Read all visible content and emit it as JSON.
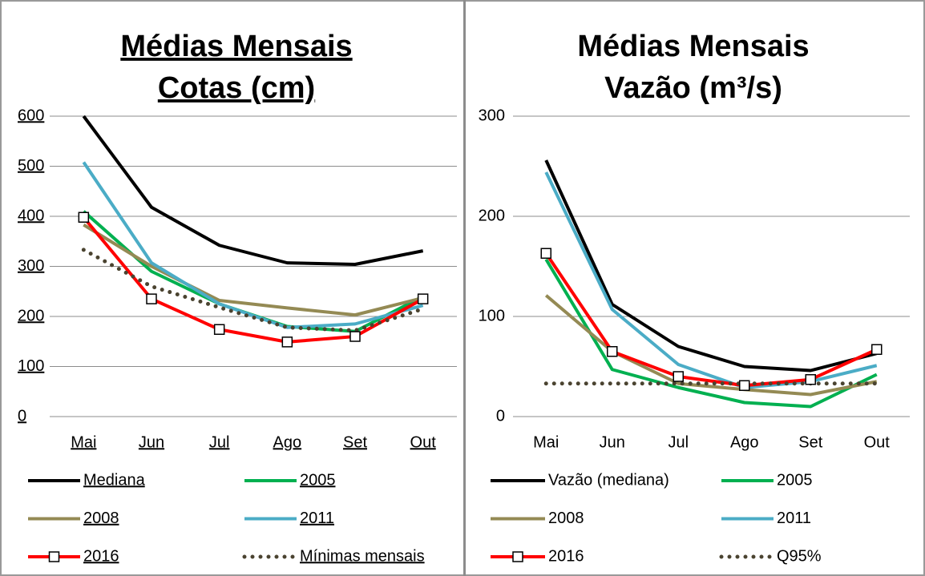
{
  "chart_data": [
    {
      "type": "line",
      "title": "Médias Mensais",
      "subtitle": "Cotas (cm)",
      "underline": true,
      "categories": [
        "Mai",
        "Jun",
        "Jul",
        "Ago",
        "Set",
        "Out"
      ],
      "ylim": [
        0,
        600
      ],
      "yticks": [
        0,
        100,
        200,
        300,
        400,
        500,
        600
      ],
      "grid": true,
      "series": [
        {
          "name": "Mediana",
          "color": "#000000",
          "values": [
            600,
            418,
            342,
            307,
            304,
            331
          ]
        },
        {
          "name": "2005",
          "color": "#00b050",
          "values": [
            410,
            290,
            225,
            180,
            170,
            240
          ]
        },
        {
          "name": "2008",
          "color": "#948a54",
          "values": [
            383,
            300,
            232,
            217,
            203,
            237
          ]
        },
        {
          "name": "2011",
          "color": "#4bacc6",
          "values": [
            508,
            307,
            225,
            178,
            185,
            222
          ]
        },
        {
          "name": "2016",
          "color": "#ff0000",
          "marker": "square",
          "values": [
            398,
            235,
            174,
            149,
            160,
            235
          ]
        },
        {
          "name": "Mínimas mensais",
          "color": "#4a4330",
          "dash": "dotted",
          "values": [
            333,
            260,
            218,
            178,
            172,
            215
          ]
        }
      ]
    },
    {
      "type": "line",
      "title": "Médias Mensais",
      "subtitle": "Vazão (m³/s)",
      "underline": false,
      "categories": [
        "Mai",
        "Jun",
        "Jul",
        "Ago",
        "Set",
        "Out"
      ],
      "ylim": [
        0,
        300
      ],
      "yticks": [
        0,
        100,
        200,
        300
      ],
      "grid": true,
      "series": [
        {
          "name": "Vazão (mediana)",
          "color": "#000000",
          "values": [
            256,
            112,
            70,
            50,
            46,
            63
          ]
        },
        {
          "name": "2005",
          "color": "#00b050",
          "values": [
            157,
            47,
            29,
            14,
            10,
            42
          ]
        },
        {
          "name": "2008",
          "color": "#948a54",
          "values": [
            121,
            65,
            33,
            27,
            22,
            35
          ]
        },
        {
          "name": "2011",
          "color": "#4bacc6",
          "values": [
            244,
            107,
            52,
            29,
            35,
            51
          ]
        },
        {
          "name": "2016",
          "color": "#ff0000",
          "marker": "square",
          "values": [
            163,
            65,
            40,
            31,
            37,
            67
          ]
        },
        {
          "name": "Q95%",
          "color": "#4a4330",
          "dash": "dotted",
          "values": [
            33,
            33,
            33,
            33,
            33,
            33
          ]
        }
      ]
    }
  ]
}
